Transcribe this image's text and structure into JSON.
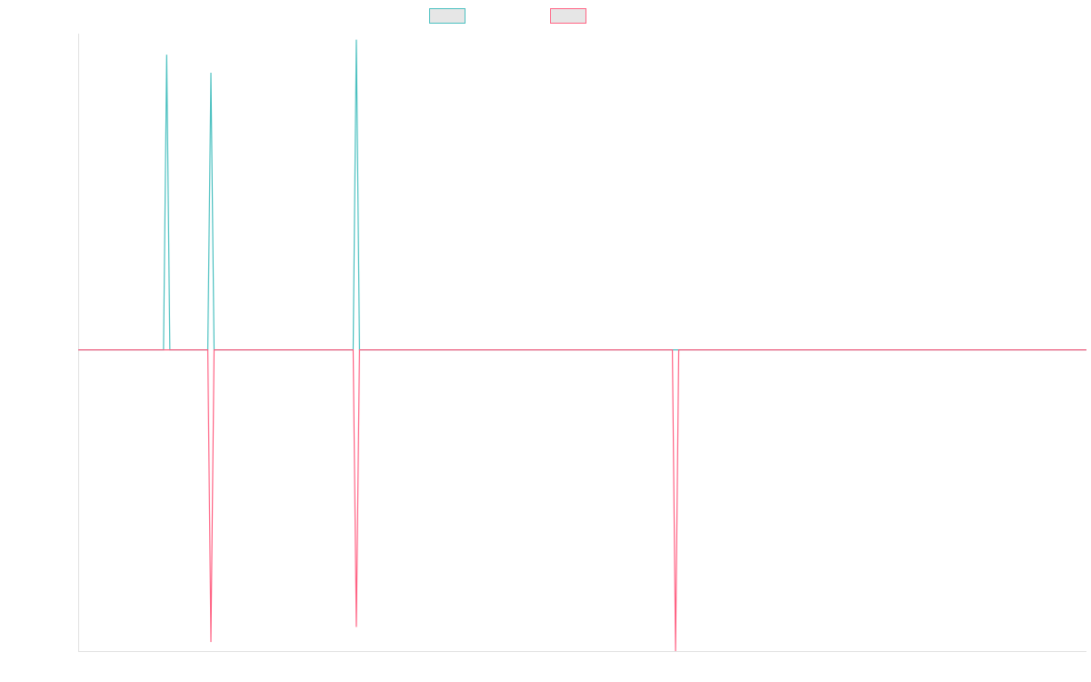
{
  "chart_data": {
    "type": "line",
    "title": "",
    "xlabel": "",
    "ylabel": "",
    "x_count": 320,
    "ylim": [
      -1.0,
      1.05
    ],
    "grid": false,
    "legend_placement": "top-center",
    "series": [
      {
        "name": "",
        "color": "#4bc0c0",
        "fill": "#e6e6e6",
        "baseline": 0,
        "points": [
          [
            27,
            0
          ],
          [
            28,
            0.98
          ],
          [
            29,
            0
          ],
          [
            41,
            0
          ],
          [
            42,
            0.92
          ],
          [
            43,
            0
          ],
          [
            87,
            0
          ],
          [
            88,
            1.03
          ],
          [
            89,
            0
          ]
        ]
      },
      {
        "name": "",
        "color": "#ff6384",
        "fill": "#e6e6e6",
        "baseline": 0,
        "points": [
          [
            41,
            0
          ],
          [
            42,
            -0.97
          ],
          [
            43,
            0
          ],
          [
            87,
            0
          ],
          [
            88,
            -0.92
          ],
          [
            89,
            0
          ],
          [
            188,
            0
          ],
          [
            189,
            -1.0
          ],
          [
            190,
            0
          ]
        ]
      }
    ]
  }
}
